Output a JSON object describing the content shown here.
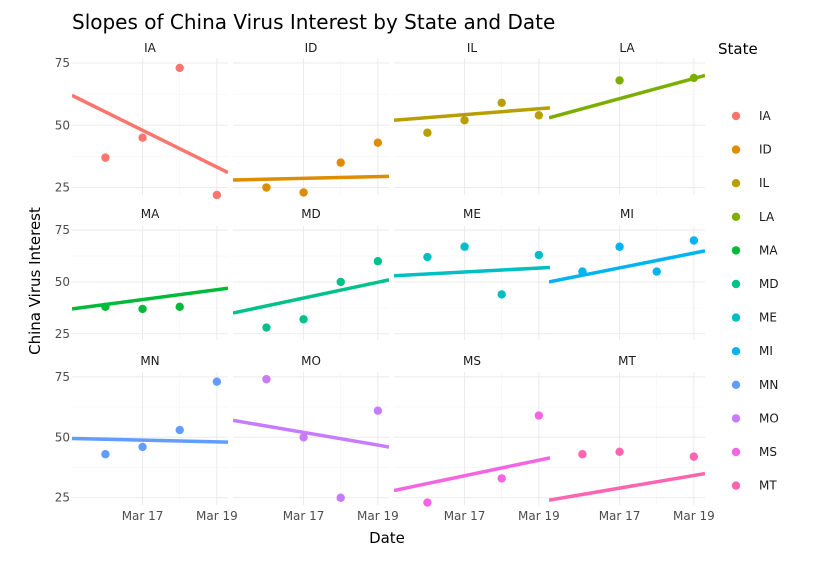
{
  "chart_data": {
    "type": "scatter",
    "title": "Slopes of China Virus Interest by State and Date",
    "xlabel": "Date",
    "ylabel": "China Virus Interest",
    "legend_title": "State",
    "legend_position": "right",
    "x_ticks": [
      {
        "label": "Mar 17",
        "day": 17
      },
      {
        "label": "Mar 19",
        "day": 19
      }
    ],
    "xlim": [
      15.1,
      19.3
    ],
    "y_ticks": [
      25,
      50,
      75
    ],
    "ylim": [
      22,
      77
    ],
    "grid": true,
    "facet_layout": {
      "rows": 3,
      "cols": 4
    },
    "x_point_days": [
      16,
      17,
      18,
      19
    ],
    "facets": [
      {
        "state": "IA",
        "color": "#F8766D",
        "values": [
          37,
          45,
          73,
          22
        ],
        "trend": [
          62,
          31
        ]
      },
      {
        "state": "ID",
        "color": "#DE8C00",
        "values": [
          25,
          23,
          35,
          43
        ],
        "trend": [
          28,
          29.5
        ]
      },
      {
        "state": "IL",
        "color": "#B79F00",
        "values": [
          47,
          52,
          59,
          54
        ],
        "trend": [
          52,
          57
        ]
      },
      {
        "state": "LA",
        "color": "#7CAE00",
        "values": [
          null,
          68,
          null,
          69
        ],
        "trend": [
          53,
          70
        ]
      },
      {
        "state": "MA",
        "color": "#00BA38",
        "values": [
          38,
          37,
          38,
          null
        ],
        "trend": [
          37,
          47
        ]
      },
      {
        "state": "MD",
        "color": "#00C08B",
        "values": [
          28,
          32,
          50,
          60
        ],
        "trend": [
          35,
          51
        ]
      },
      {
        "state": "ME",
        "color": "#00BFC4",
        "values": [
          62,
          67,
          44,
          63
        ],
        "trend": [
          53,
          57
        ]
      },
      {
        "state": "MI",
        "color": "#00B4F0",
        "values": [
          55,
          67,
          55,
          70
        ],
        "trend": [
          50,
          65
        ]
      },
      {
        "state": "MN",
        "color": "#619CFF",
        "values": [
          43,
          46,
          53,
          73
        ],
        "trend": [
          49.5,
          48
        ]
      },
      {
        "state": "MO",
        "color": "#C77CFF",
        "values": [
          74,
          50,
          25,
          61
        ],
        "trend": [
          57,
          46
        ]
      },
      {
        "state": "MS",
        "color": "#F564E3",
        "values": [
          23,
          null,
          33,
          59
        ],
        "trend": [
          28,
          41.5
        ]
      },
      {
        "state": "MT",
        "color": "#FF64B0",
        "values": [
          43,
          44,
          null,
          42
        ],
        "trend": [
          24,
          35
        ]
      }
    ]
  }
}
